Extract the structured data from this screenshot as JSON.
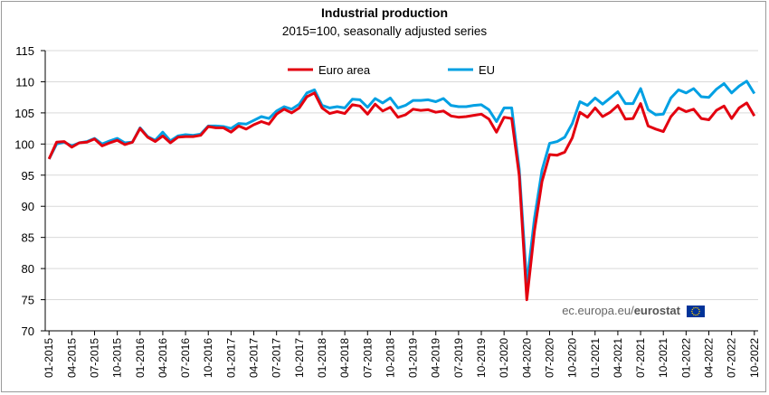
{
  "chart_data": {
    "type": "line",
    "title": "Industrial production",
    "subtitle": "2015=100, seasonally adjusted series",
    "ylim": [
      70,
      115
    ],
    "yticks": [
      70,
      75,
      80,
      85,
      90,
      95,
      100,
      105,
      110,
      115
    ],
    "grid": "horizontal",
    "legend_position": "top-center",
    "xtick_labels": [
      "01-2015",
      "04-2015",
      "07-2015",
      "10-2015",
      "01-2016",
      "04-2016",
      "07-2016",
      "10-2016",
      "01-2017",
      "04-2017",
      "07-2017",
      "10-2017",
      "01-2018",
      "04-2018",
      "07-2018",
      "10-2018",
      "01-2019",
      "04-2019",
      "07-2019",
      "10-2019",
      "01-2020",
      "04-2020",
      "07-2020",
      "10-2020",
      "01-2021",
      "04-2021",
      "07-2021",
      "10-2021",
      "01-2022",
      "04-2022",
      "07-2022",
      "10-2022"
    ],
    "series": [
      {
        "name": "Euro area",
        "color": "#e3000f",
        "values": [
          97.6,
          100.3,
          100.4,
          99.5,
          100.2,
          100.3,
          100.8,
          99.7,
          100.2,
          100.6,
          99.9,
          100.3,
          102.5,
          101.1,
          100.4,
          101.3,
          100.2,
          101.1,
          101.2,
          101.2,
          101.4,
          102.8,
          102.6,
          102.6,
          101.9,
          102.9,
          102.4,
          103.1,
          103.6,
          103.2,
          104.8,
          105.6,
          105.0,
          105.8,
          107.6,
          108.2,
          105.8,
          104.9,
          105.2,
          104.9,
          106.3,
          106.1,
          104.8,
          106.4,
          105.3,
          105.9,
          104.3,
          104.7,
          105.6,
          105.4,
          105.5,
          105.1,
          105.3,
          104.5,
          104.3,
          104.4,
          104.6,
          104.8,
          104.0,
          101.9,
          104.3,
          104.1,
          95.0,
          75.0,
          86.0,
          94.0,
          98.3,
          98.2,
          98.7,
          101.0,
          105.1,
          104.3,
          105.8,
          104.4,
          105.1,
          106.2,
          104.0,
          104.1,
          106.5,
          102.9,
          102.4,
          102.0,
          104.4,
          105.8,
          105.2,
          105.6,
          104.1,
          103.9,
          105.4,
          106.1,
          104.1,
          105.8,
          106.6,
          104.5
        ]
      },
      {
        "name": "EU",
        "color": "#00a0e3",
        "values": [
          97.6,
          100.0,
          100.3,
          99.7,
          100.2,
          100.4,
          100.9,
          100.0,
          100.5,
          100.9,
          100.2,
          100.3,
          102.6,
          101.2,
          100.6,
          101.9,
          100.5,
          101.3,
          101.5,
          101.4,
          101.6,
          102.9,
          102.9,
          102.8,
          102.5,
          103.3,
          103.2,
          103.8,
          104.4,
          104.1,
          105.3,
          106.0,
          105.6,
          106.4,
          108.2,
          108.7,
          106.2,
          105.8,
          106.0,
          105.8,
          107.2,
          107.1,
          105.9,
          107.3,
          106.6,
          107.4,
          105.8,
          106.2,
          107.0,
          107.0,
          107.1,
          106.8,
          107.3,
          106.2,
          106.0,
          106.0,
          106.2,
          106.3,
          105.5,
          103.6,
          105.8,
          105.8,
          96.0,
          77.5,
          88.0,
          95.8,
          100.1,
          100.4,
          101.1,
          103.3,
          106.8,
          106.2,
          107.4,
          106.4,
          107.4,
          108.4,
          106.5,
          106.5,
          108.9,
          105.5,
          104.7,
          104.8,
          107.4,
          108.7,
          108.2,
          108.9,
          107.6,
          107.5,
          108.8,
          109.7,
          108.2,
          109.3,
          110.1,
          108.1
        ]
      }
    ]
  },
  "source_text": {
    "plain": "ec.europa.eu/",
    "bold": "eurostat"
  },
  "logo": {
    "name": "eu-flag-icon",
    "color": "#003399",
    "star_color": "#ffcc00"
  }
}
